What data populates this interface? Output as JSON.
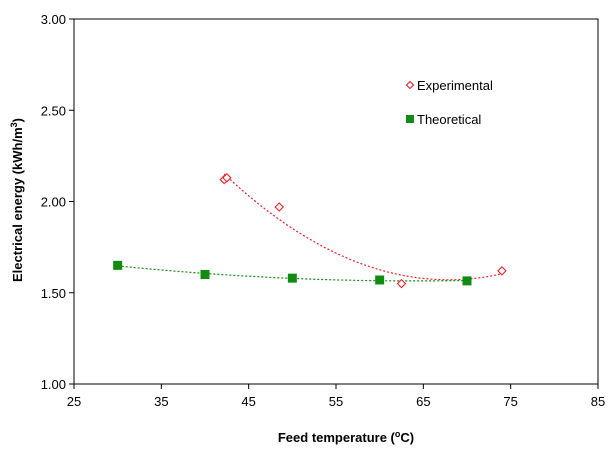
{
  "chart_data": {
    "type": "scatter",
    "title": "",
    "xlabel": "Feed temperature (",
    "xlabel_sup": "o",
    "xlabel_end": "C)",
    "ylabel": "Electrical energy (kWh/m",
    "ylabel_sup": "3",
    "ylabel_end": ")",
    "xlim": [
      25,
      85
    ],
    "ylim": [
      1.0,
      3.0
    ],
    "xticks": [
      "25",
      "35",
      "45",
      "55",
      "65",
      "75",
      "85"
    ],
    "yticks": [
      "1.00",
      "1.50",
      "2.00",
      "2.50",
      "3.00"
    ],
    "grid": false,
    "legend_position": "top-right",
    "series": [
      {
        "name": "Experimental",
        "marker": "open-diamond",
        "color": "#e8202a",
        "x": [
          42.2,
          42.5,
          48.5,
          62.5,
          74.0
        ],
        "y": [
          2.12,
          2.13,
          1.97,
          1.55,
          1.62
        ],
        "trendline": {
          "type": "poly2",
          "x_range": [
            42.2,
            74.0
          ],
          "color": "#e8202a"
        }
      },
      {
        "name": "Theoretical",
        "marker": "filled-square",
        "color": "#128b12",
        "x": [
          30,
          40,
          50,
          60,
          70
        ],
        "y": [
          1.65,
          1.6,
          1.58,
          1.57,
          1.565
        ],
        "trendline": {
          "type": "poly2",
          "x_range": [
            30,
            70
          ],
          "color": "#128b12"
        }
      }
    ]
  }
}
